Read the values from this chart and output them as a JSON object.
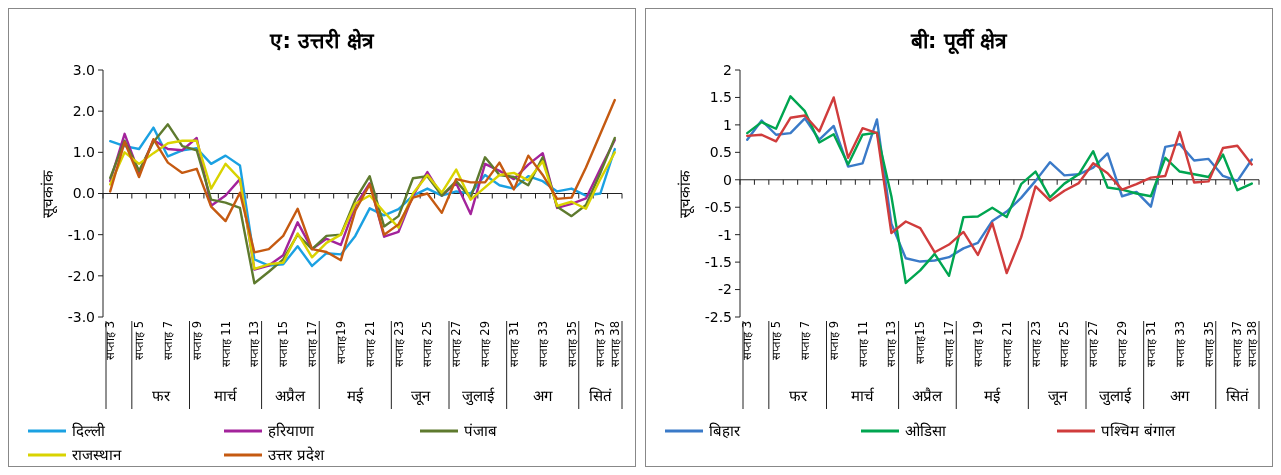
{
  "chart_data": [
    {
      "type": "line",
      "title": "ए: उत्तरी क्षेत्र",
      "ylabel": "सूचकांक",
      "categories": [
        "सप्ताह 3",
        null,
        "सप्ताह 5",
        null,
        "सप्ताह 7",
        null,
        "सप्ताह 9",
        null,
        "सप्ताह 11",
        null,
        "सप्ताह 13",
        null,
        "सप्ताह 15",
        null,
        "सप्ताह 17",
        null,
        "सप्ताह19",
        null,
        "सप्ताह 21",
        null,
        "सप्ताह 23",
        null,
        "सप्ताह 25",
        null,
        "सप्ताह 27",
        null,
        "सप्ताह 29",
        null,
        "सप्ताह 31",
        null,
        "सप्ताह 33",
        null,
        "सप्ताह 35",
        null,
        "सप्ताह 37",
        "सप्ताह 38"
      ],
      "series": [
        {
          "name": "दिल्ली",
          "color": "#1ba1e2",
          "values": [
            1.27,
            1.15,
            1.08,
            1.6,
            0.9,
            1.05,
            1.1,
            0.72,
            0.92,
            0.68,
            -1.6,
            -1.75,
            -1.72,
            -1.28,
            -1.76,
            -1.45,
            -1.48,
            -1.03,
            -0.36,
            -0.53,
            -0.38,
            -0.05,
            0.12,
            -0.05,
            0.05,
            0.0,
            0.45,
            0.2,
            0.12,
            0.42,
            0.3,
            0.05,
            0.12,
            -0.05,
            0.0,
            1.08
          ]
        },
        {
          "name": "हरियाणा",
          "color": "#a3239b",
          "values": [
            0.3,
            1.45,
            0.5,
            1.3,
            1.08,
            1.05,
            1.35,
            -0.3,
            -0.05,
            0.35,
            -1.85,
            -1.75,
            -1.5,
            -0.7,
            -1.35,
            -1.1,
            -1.25,
            -0.3,
            0.25,
            -1.05,
            -0.93,
            -0.05,
            0.52,
            -0.05,
            0.25,
            -0.5,
            0.72,
            0.55,
            0.35,
            0.7,
            0.98,
            -0.35,
            -0.25,
            -0.12,
            0.6,
            1.3
          ]
        },
        {
          "name": "पंजाब",
          "color": "#5e7a2e",
          "values": [
            0.38,
            1.28,
            0.55,
            1.25,
            1.68,
            1.15,
            1.05,
            -0.15,
            -0.22,
            -0.35,
            -2.18,
            -1.9,
            -1.6,
            -1.0,
            -1.35,
            -1.03,
            -1.0,
            -0.15,
            0.42,
            -0.8,
            -0.55,
            0.37,
            0.42,
            -0.05,
            0.3,
            -0.1,
            0.88,
            0.45,
            0.4,
            0.2,
            0.88,
            -0.32,
            -0.55,
            -0.28,
            0.5,
            1.35
          ]
        },
        {
          "name": "राजस्थान",
          "color": "#d9d300",
          "values": [
            0.22,
            1.0,
            0.72,
            0.98,
            1.22,
            1.28,
            1.28,
            0.12,
            0.72,
            0.35,
            -1.83,
            -1.72,
            -1.68,
            -0.97,
            -1.55,
            -1.2,
            -1.0,
            -0.25,
            -0.05,
            -0.45,
            -0.83,
            0.0,
            0.45,
            0.02,
            0.58,
            -0.15,
            0.15,
            0.45,
            0.5,
            0.32,
            0.78,
            -0.3,
            -0.2,
            -0.37,
            0.35,
            1.0
          ]
        },
        {
          "name": "उत्तर प्रदेश",
          "color": "#c55a11",
          "values": [
            0.05,
            1.25,
            0.4,
            1.32,
            0.75,
            0.5,
            0.6,
            -0.32,
            -0.67,
            0.02,
            -1.43,
            -1.35,
            -1.03,
            -0.37,
            -1.35,
            -1.42,
            -1.62,
            -0.42,
            0.22,
            -1.0,
            -0.75,
            -0.1,
            0.0,
            -0.47,
            0.35,
            0.27,
            0.27,
            0.75,
            0.1,
            0.92,
            0.45,
            -0.13,
            -0.1,
            0.63,
            1.45,
            2.27
          ]
        }
      ],
      "ylim": [
        -3,
        3
      ],
      "yticks": [
        {
          "value": -3,
          "label": "-3.0"
        },
        {
          "value": -2,
          "label": "-2.0"
        },
        {
          "value": -1,
          "label": "-1.0"
        },
        {
          "value": 0,
          "label": "0.0"
        },
        {
          "value": 1,
          "label": "1.0"
        },
        {
          "value": 2,
          "label": "2.0"
        },
        {
          "value": 3,
          "label": "3.0"
        }
      ],
      "annotations": [
        "फर",
        "मार्च",
        "अप्रैल",
        "मई",
        "जून",
        "जुलाई",
        "अग",
        "सितं"
      ],
      "ref_lines": [
        {
          "axis": "y",
          "value": 0
        }
      ],
      "legend": "bottom"
    },
    {
      "type": "line",
      "title": "बी: पूर्वी क्षेत्र",
      "ylabel": "सूचकांक",
      "categories": [
        "सप्ताह 3",
        null,
        "सप्ताह 5",
        null,
        "सप्ताह 7",
        null,
        "सप्ताह 9",
        null,
        "सप्ताह 11",
        null,
        "सप्ताह 13",
        null,
        "सप्ताह15",
        null,
        "सप्ताह 17",
        null,
        "सप्ताह 19",
        null,
        "सप्ताह 21",
        null,
        "सप्ताह 23",
        null,
        "सप्ताह 25",
        null,
        "सप्ताह 27",
        null,
        "सप्ताह 29",
        null,
        "सप्ताह 31",
        null,
        "सप्ताह 33",
        null,
        "सप्ताह 35",
        null,
        "सप्ताह 37",
        "सप्ताह 38"
      ],
      "series": [
        {
          "name": "बिहार",
          "color": "#3a7ac8",
          "values": [
            0.73,
            1.08,
            0.82,
            0.85,
            1.12,
            0.73,
            0.98,
            0.24,
            0.3,
            1.1,
            -0.8,
            -1.43,
            -1.49,
            -1.47,
            -1.41,
            -1.25,
            -1.15,
            -0.75,
            -0.58,
            -0.33,
            -0.02,
            0.32,
            0.08,
            0.1,
            0.22,
            0.48,
            -0.3,
            -0.22,
            -0.49,
            0.6,
            0.65,
            0.35,
            0.38,
            0.07,
            -0.02,
            0.37
          ]
        },
        {
          "name": "ओडिसा",
          "color": "#00a550",
          "values": [
            0.85,
            1.05,
            0.93,
            1.52,
            1.25,
            0.68,
            0.83,
            0.28,
            0.82,
            0.86,
            -0.3,
            -1.88,
            -1.65,
            -1.35,
            -1.75,
            -0.68,
            -0.67,
            -0.51,
            -0.68,
            -0.08,
            0.15,
            -0.32,
            -0.07,
            0.1,
            0.52,
            -0.14,
            -0.18,
            -0.25,
            -0.3,
            0.4,
            0.15,
            0.1,
            0.05,
            0.46,
            -0.19,
            -0.07
          ]
        },
        {
          "name": "पश्चिम बंगाल",
          "color": "#d03c3c",
          "values": [
            0.8,
            0.82,
            0.7,
            1.13,
            1.17,
            0.88,
            1.5,
            0.4,
            0.94,
            0.85,
            -0.97,
            -0.76,
            -0.88,
            -1.32,
            -1.18,
            -0.95,
            -1.37,
            -0.79,
            -1.7,
            -1.05,
            -0.12,
            -0.38,
            -0.2,
            -0.06,
            0.3,
            0.12,
            -0.18,
            -0.08,
            0.04,
            0.07,
            0.87,
            -0.05,
            -0.03,
            0.58,
            0.62,
            0.28
          ]
        }
      ],
      "ylim": [
        -2.5,
        2
      ],
      "yticks": [
        -2.5,
        -2,
        -1.5,
        -1,
        -0.5,
        0,
        0.5,
        1,
        1.5,
        2
      ],
      "annotations": [
        "फर",
        "मार्च",
        "अप्रैल",
        "मई",
        "जून",
        "जुलाई",
        "अग",
        "सितं"
      ],
      "ref_lines": [
        {
          "axis": "y",
          "value": 0
        }
      ],
      "legend": "bottom"
    }
  ]
}
